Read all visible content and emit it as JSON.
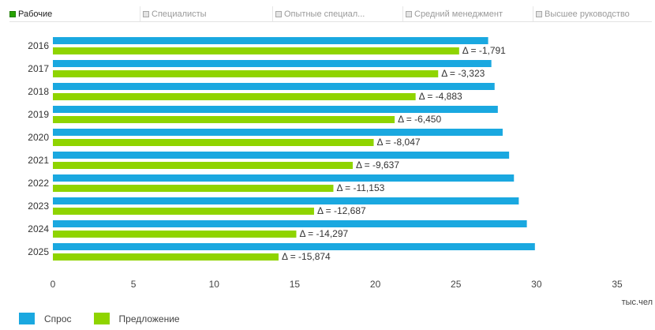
{
  "tabs": [
    {
      "label": "Рабочие",
      "active": true
    },
    {
      "label": "Специалисты",
      "active": false
    },
    {
      "label": "Опытные специал...",
      "active": false
    },
    {
      "label": "Средний менеджмент",
      "active": false
    },
    {
      "label": "Высшее руководство",
      "active": false
    }
  ],
  "colors": {
    "demand": "#1aa8e0",
    "supply": "#8fd400"
  },
  "legend": {
    "demand_label": "Спрос",
    "supply_label": "Предложение"
  },
  "chart_data": {
    "type": "bar",
    "orientation": "horizontal",
    "categories": [
      "2016",
      "2017",
      "2018",
      "2019",
      "2020",
      "2021",
      "2022",
      "2023",
      "2024",
      "2025"
    ],
    "series": [
      {
        "name": "Спрос",
        "values": [
          27.0,
          27.2,
          27.4,
          27.6,
          27.9,
          28.3,
          28.6,
          28.9,
          29.4,
          29.9
        ]
      },
      {
        "name": "Предложение",
        "values": [
          25.2,
          23.9,
          22.5,
          21.2,
          19.9,
          18.6,
          17.4,
          16.2,
          15.1,
          14.0
        ]
      }
    ],
    "annotations": [
      "Δ = -1,791",
      "Δ = -3,323",
      "Δ = -4,883",
      "Δ = -6,450",
      "Δ = -8,047",
      "Δ = -9,637",
      "Δ = -11,153",
      "Δ = -12,687",
      "Δ = -14,297",
      "Δ = -15,874"
    ],
    "xticks": [
      "0",
      "5",
      "10",
      "15",
      "20",
      "25",
      "30",
      "35"
    ],
    "xlim": [
      0,
      35
    ],
    "xlabel": "тыс.чел",
    "ylabel": "",
    "title": "",
    "grid": false,
    "legend_position": "bottom-left"
  }
}
